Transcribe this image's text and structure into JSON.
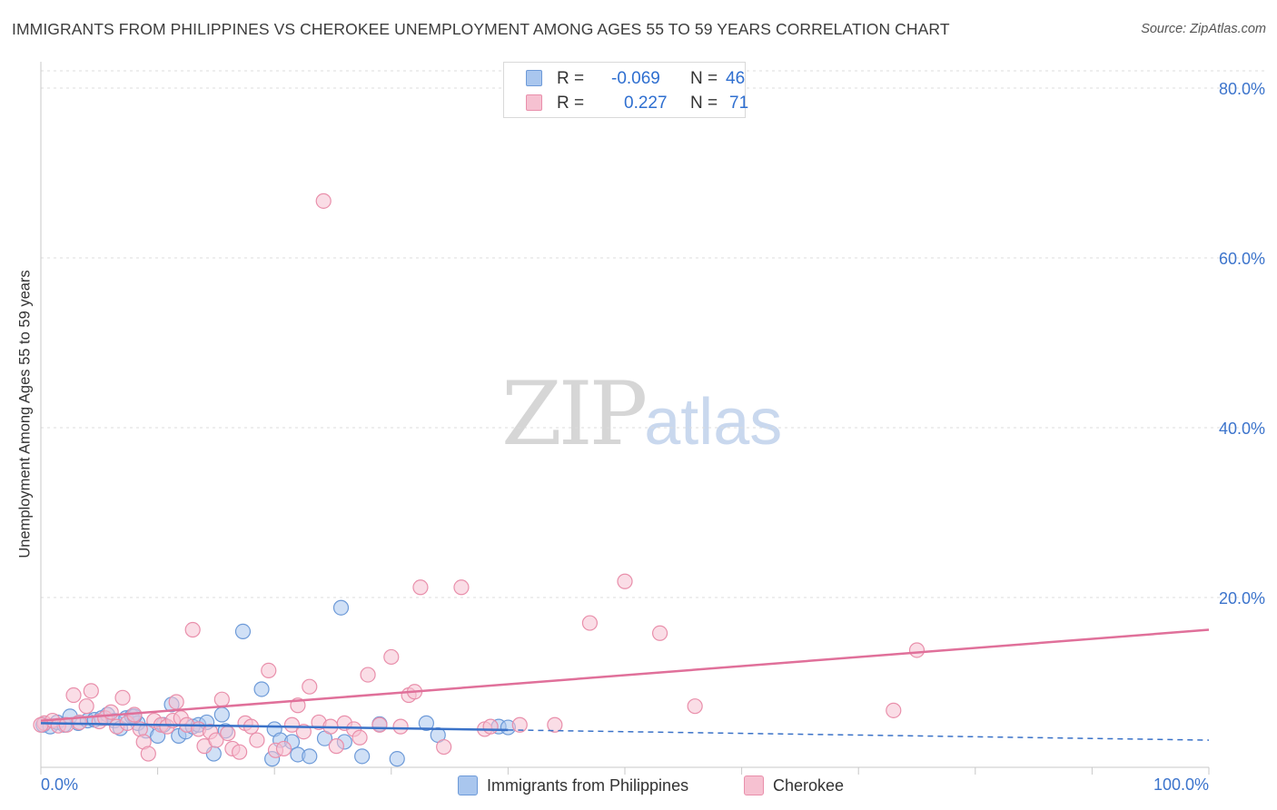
{
  "header": {
    "title": "IMMIGRANTS FROM PHILIPPINES VS CHEROKEE UNEMPLOYMENT AMONG AGES 55 TO 59 YEARS CORRELATION CHART",
    "source": "Source: ZipAtlas.com"
  },
  "watermark": {
    "zip": "ZIP",
    "atlas": "atlas"
  },
  "stats": {
    "rows": [
      {
        "r_label": "R =",
        "r_value": "-0.069",
        "n_label": "N =",
        "n_value": "46"
      },
      {
        "r_label": "R =",
        "r_value": "0.227",
        "n_label": "N =",
        "n_value": "71"
      }
    ]
  },
  "legend": {
    "items": [
      {
        "label": "Immigrants from Philippines"
      },
      {
        "label": "Cherokee"
      }
    ]
  },
  "colors": {
    "blue_fill": "#a9c6ee",
    "blue_stroke": "#6d9ad8",
    "blue_line": "#3a72c8",
    "pink_fill": "#f6c1d1",
    "pink_stroke": "#e98fab",
    "pink_line": "#e0709a",
    "tick_text": "#3c74cc",
    "grid": "#dcdcdc"
  },
  "chart_data": {
    "type": "scatter",
    "title": "IMMIGRANTS FROM PHILIPPINES VS CHEROKEE UNEMPLOYMENT AMONG AGES 55 TO 59 YEARS CORRELATION CHART",
    "xlabel": "",
    "ylabel": "Unemployment Among Ages 55 to 59 years",
    "xlim": [
      0,
      100
    ],
    "ylim": [
      0,
      85
    ],
    "x_tick_labels": [
      {
        "value": 0,
        "label": "0.0%"
      },
      {
        "value": 100,
        "label": "100.0%"
      }
    ],
    "y_tick_labels": [
      {
        "value": 20,
        "label": "20.0%"
      },
      {
        "value": 40,
        "label": "40.0%"
      },
      {
        "value": 60,
        "label": "60.0%"
      },
      {
        "value": 80,
        "label": "80.0%"
      }
    ],
    "x_minor_ticks": [
      0,
      10,
      20,
      30,
      40,
      50,
      60,
      70,
      80,
      90,
      100
    ],
    "grid": true,
    "legend_position": "bottom",
    "series": [
      {
        "name": "Immigrants from Philippines",
        "color_key": "blue",
        "trend": {
          "x_start": 0,
          "y_start": 5.2,
          "x_solid_end": 40,
          "y_solid_end": 4.4,
          "x_end": 100,
          "y_end": 3.2
        },
        "points": [
          [
            0.2,
            5.0
          ],
          [
            0.8,
            4.8
          ],
          [
            1.4,
            5.3
          ],
          [
            2.0,
            5.0
          ],
          [
            2.5,
            6.0
          ],
          [
            3.2,
            5.2
          ],
          [
            4.0,
            5.5
          ],
          [
            4.6,
            5.6
          ],
          [
            5.2,
            5.8
          ],
          [
            5.7,
            6.2
          ],
          [
            6.3,
            5.5
          ],
          [
            6.8,
            4.6
          ],
          [
            7.3,
            5.8
          ],
          [
            7.8,
            6.0
          ],
          [
            8.3,
            5.2
          ],
          [
            9.0,
            4.3
          ],
          [
            10.0,
            3.7
          ],
          [
            10.5,
            5.0
          ],
          [
            11.2,
            7.4
          ],
          [
            11.8,
            3.7
          ],
          [
            12.4,
            4.2
          ],
          [
            13.0,
            4.8
          ],
          [
            13.5,
            5.0
          ],
          [
            14.2,
            5.3
          ],
          [
            14.8,
            1.6
          ],
          [
            15.5,
            6.2
          ],
          [
            15.8,
            4.3
          ],
          [
            17.3,
            16.0
          ],
          [
            18.9,
            9.2
          ],
          [
            20.0,
            4.5
          ],
          [
            20.5,
            3.2
          ],
          [
            21.5,
            3.0
          ],
          [
            22.0,
            1.5
          ],
          [
            23.0,
            1.3
          ],
          [
            24.3,
            3.4
          ],
          [
            25.7,
            18.8
          ],
          [
            26.0,
            3.0
          ],
          [
            27.5,
            1.3
          ],
          [
            29.0,
            5.1
          ],
          [
            30.5,
            1.0
          ],
          [
            33.0,
            5.2
          ],
          [
            34.0,
            3.8
          ],
          [
            39.2,
            4.8
          ],
          [
            40.0,
            4.7
          ],
          [
            19.8,
            1.0
          ],
          [
            8.0,
            6.0
          ]
        ]
      },
      {
        "name": "Cherokee",
        "color_key": "pink",
        "trend": {
          "x_start": 0,
          "y_start": 5.5,
          "x_end": 100,
          "y_end": 16.2
        },
        "points": [
          [
            0.3,
            5.2
          ],
          [
            1.0,
            5.5
          ],
          [
            1.5,
            4.9
          ],
          [
            2.2,
            5.0
          ],
          [
            2.8,
            8.5
          ],
          [
            3.3,
            5.3
          ],
          [
            3.9,
            7.2
          ],
          [
            4.3,
            9.0
          ],
          [
            5.0,
            5.4
          ],
          [
            5.5,
            5.8
          ],
          [
            6.0,
            6.5
          ],
          [
            6.5,
            4.8
          ],
          [
            7.0,
            8.2
          ],
          [
            7.4,
            5.2
          ],
          [
            8.0,
            6.2
          ],
          [
            8.5,
            4.5
          ],
          [
            8.8,
            3.0
          ],
          [
            9.2,
            1.6
          ],
          [
            9.7,
            5.5
          ],
          [
            10.3,
            5.0
          ],
          [
            10.8,
            4.8
          ],
          [
            11.3,
            5.5
          ],
          [
            11.6,
            7.7
          ],
          [
            12.0,
            5.8
          ],
          [
            12.5,
            5.0
          ],
          [
            13.0,
            16.2
          ],
          [
            13.5,
            4.5
          ],
          [
            14.0,
            2.5
          ],
          [
            14.5,
            4.2
          ],
          [
            15.0,
            3.2
          ],
          [
            15.5,
            8.0
          ],
          [
            16.0,
            4.0
          ],
          [
            16.4,
            2.2
          ],
          [
            17.0,
            1.8
          ],
          [
            17.5,
            5.2
          ],
          [
            18.0,
            4.8
          ],
          [
            18.5,
            3.2
          ],
          [
            19.5,
            11.4
          ],
          [
            20.1,
            2.0
          ],
          [
            20.8,
            2.2
          ],
          [
            21.5,
            5.0
          ],
          [
            22.0,
            7.3
          ],
          [
            22.5,
            4.2
          ],
          [
            23.0,
            9.5
          ],
          [
            23.8,
            5.3
          ],
          [
            24.2,
            66.7
          ],
          [
            24.8,
            4.8
          ],
          [
            25.3,
            2.5
          ],
          [
            26.0,
            5.2
          ],
          [
            26.8,
            4.5
          ],
          [
            27.3,
            3.5
          ],
          [
            28.0,
            10.9
          ],
          [
            29.0,
            5.0
          ],
          [
            30.0,
            13.0
          ],
          [
            30.8,
            4.8
          ],
          [
            31.5,
            8.5
          ],
          [
            32.0,
            8.9
          ],
          [
            32.5,
            21.2
          ],
          [
            34.5,
            2.4
          ],
          [
            36.0,
            21.2
          ],
          [
            38.0,
            4.5
          ],
          [
            38.5,
            4.8
          ],
          [
            41.0,
            5.0
          ],
          [
            44.0,
            5.0
          ],
          [
            47.0,
            17.0
          ],
          [
            50.0,
            21.9
          ],
          [
            53.0,
            15.8
          ],
          [
            56.0,
            7.2
          ],
          [
            73.0,
            6.7
          ],
          [
            75.0,
            13.8
          ],
          [
            0.0,
            5.0
          ]
        ]
      }
    ]
  }
}
